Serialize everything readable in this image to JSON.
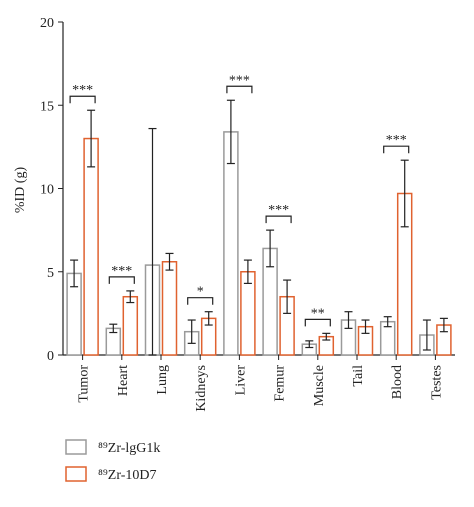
{
  "chart_data": {
    "type": "bar",
    "y_label": "%ID (g)",
    "categories": [
      "Tumor",
      "Heart",
      "Lung",
      "Kidneys",
      "Liver",
      "Femur",
      "Muscle",
      "Tail",
      "Blood",
      "Testes"
    ],
    "series": [
      {
        "name": "⁸⁹Zr-lgG1k",
        "color": "#9a9a9a",
        "values": [
          4.9,
          1.6,
          5.4,
          1.4,
          13.4,
          6.4,
          0.65,
          2.1,
          2.0,
          1.2
        ],
        "errors": [
          0.8,
          0.25,
          8.2,
          0.7,
          1.9,
          1.1,
          0.2,
          0.5,
          0.3,
          0.9
        ]
      },
      {
        "name": "⁸⁹Zr-10D7",
        "color": "#e0622f",
        "values": [
          13.0,
          3.5,
          5.6,
          2.2,
          5.0,
          3.5,
          1.1,
          1.7,
          9.7,
          1.8
        ],
        "errors": [
          1.7,
          0.35,
          0.5,
          0.4,
          0.7,
          1.0,
          0.2,
          0.4,
          2.0,
          0.4
        ]
      }
    ],
    "annotations": [
      {
        "category": "Tumor",
        "label": "***"
      },
      {
        "category": "Heart",
        "label": "***"
      },
      {
        "category": "Kidneys",
        "label": "*"
      },
      {
        "category": "Liver",
        "label": "***"
      },
      {
        "category": "Femur",
        "label": "***"
      },
      {
        "category": "Muscle",
        "label": "**"
      },
      {
        "category": "Blood",
        "label": "***"
      }
    ],
    "ylim": [
      0,
      20
    ],
    "yticks": [
      0,
      5,
      10,
      15,
      20
    ]
  }
}
